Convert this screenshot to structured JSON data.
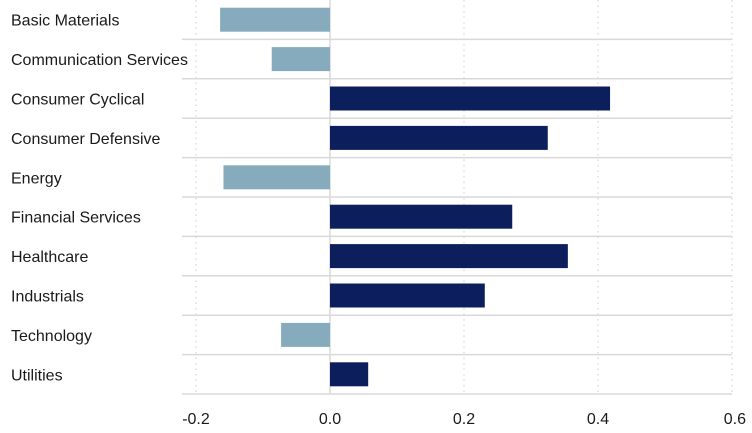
{
  "chart_data": {
    "type": "bar",
    "orientation": "horizontal",
    "categories": [
      "Basic Materials",
      "Communication Services",
      "Consumer Cyclical",
      "Consumer Defensive",
      "Energy",
      "Financial Services",
      "Healthcare",
      "Industrials",
      "Technology",
      "Utilities"
    ],
    "values": [
      -0.164,
      -0.087,
      0.418,
      0.325,
      -0.159,
      0.272,
      0.355,
      0.231,
      -0.073,
      0.057
    ],
    "xlim": [
      -0.2,
      0.6
    ],
    "xticks": [
      -0.2,
      0.0,
      0.2,
      0.4,
      0.6
    ],
    "xtick_labels": [
      "-0.2",
      "0.0",
      "0.2",
      "0.4",
      "0.6"
    ],
    "title": "",
    "xlabel": "",
    "ylabel": "",
    "grid": "vertical dotted",
    "colors": {
      "positive": "#0c1f5c",
      "negative": "#86abbc",
      "grid": "#cccccc",
      "separator": "#d9d9d9"
    }
  }
}
